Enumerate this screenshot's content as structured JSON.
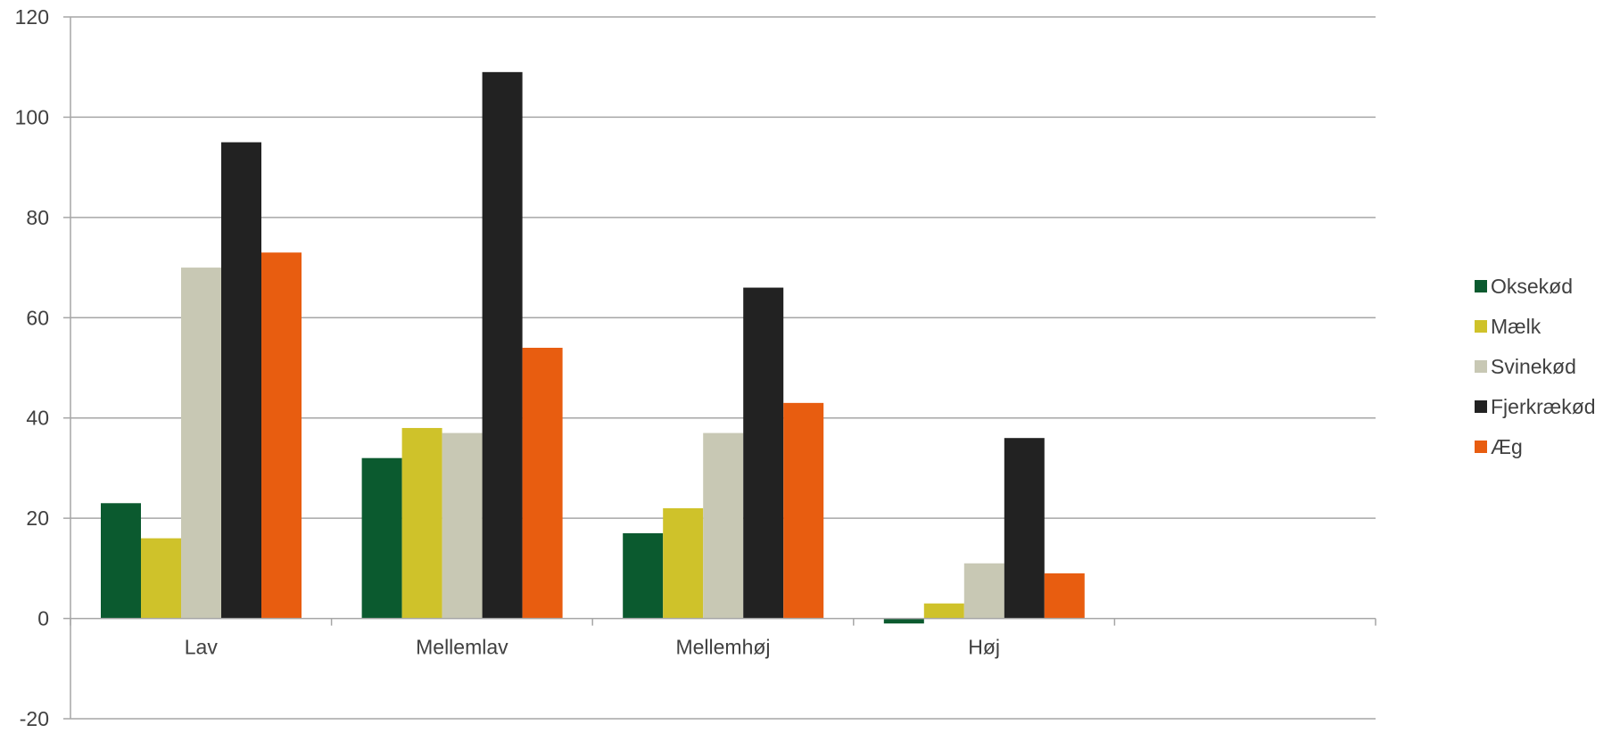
{
  "chart_data": {
    "type": "bar",
    "title": "",
    "xlabel": "",
    "ylabel": "",
    "categories": [
      "Lav",
      "Mellemlav",
      "Mellemhøj",
      "Høj",
      ""
    ],
    "ylim": [
      -20,
      120
    ],
    "yticks": [
      -20,
      0,
      20,
      40,
      60,
      80,
      100,
      120
    ],
    "ytick_labels": [
      "-20",
      "0",
      "20",
      "40",
      "60",
      "80",
      "100",
      "120"
    ],
    "grid": true,
    "legend_position": "right",
    "series": [
      {
        "name": "Oksekød",
        "color": "#0b5a2f",
        "values": [
          23,
          32,
          17,
          -1,
          null
        ]
      },
      {
        "name": "Mælk",
        "color": "#cfc22a",
        "values": [
          16,
          38,
          22,
          3,
          null
        ]
      },
      {
        "name": "Svinekød",
        "color": "#c8c8b4",
        "values": [
          70,
          37,
          37,
          11,
          null
        ]
      },
      {
        "name": "Fjerkrækød",
        "color": "#222222",
        "values": [
          95,
          109,
          66,
          36,
          null
        ]
      },
      {
        "name": "Æg",
        "color": "#e85d10",
        "values": [
          73,
          54,
          43,
          9,
          null
        ]
      }
    ]
  }
}
